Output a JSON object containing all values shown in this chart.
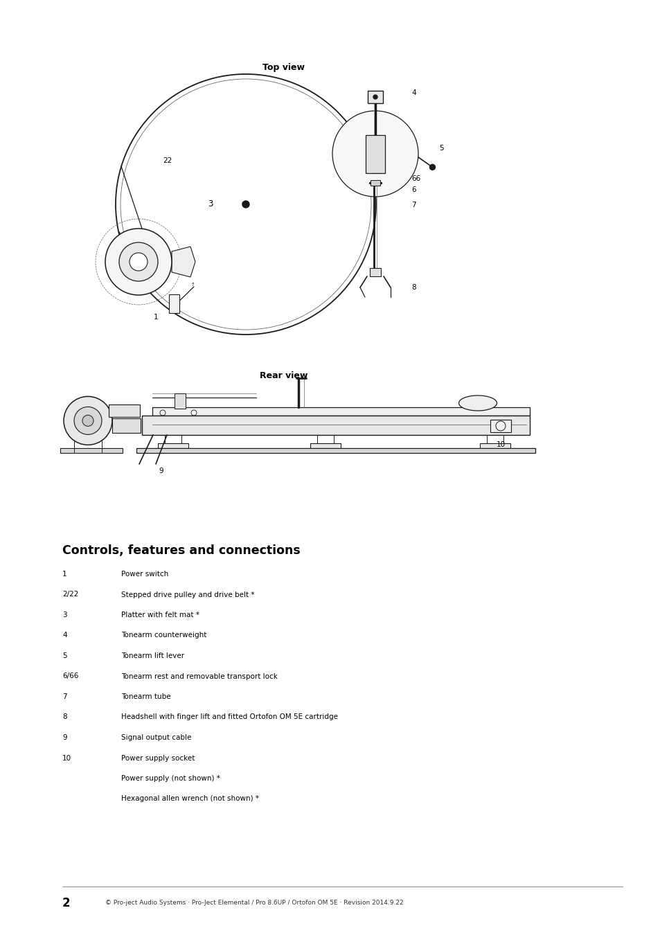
{
  "bg_color": "#ffffff",
  "page_width": 9.54,
  "page_height": 13.5,
  "top_view_label": "Top view",
  "rear_view_label": "Rear view",
  "section_title": "Controls, features and connections",
  "items": [
    {
      "num": "1",
      "desc": "Power switch"
    },
    {
      "num": "2/22",
      "desc": "Stepped drive pulley and drive belt *"
    },
    {
      "num": "3",
      "desc": "Platter with felt mat *"
    },
    {
      "num": "4",
      "desc": "Tonearm counterweight"
    },
    {
      "num": "5",
      "desc": "Tonearm lift lever"
    },
    {
      "num": "6/66",
      "desc": "Tonearm rest and removable transport lock"
    },
    {
      "num": "7",
      "desc": "Tonearm tube"
    },
    {
      "num": "8",
      "desc": "Headshell with finger lift and fitted Ortofon OM 5E cartridge"
    },
    {
      "num": "9",
      "desc": "Signal output cable"
    },
    {
      "num": "10",
      "desc": "Power supply socket"
    },
    {
      "num": "",
      "desc": "Power supply (not shown) *"
    },
    {
      "num": "",
      "desc": "Hexagonal allen wrench (not shown) *"
    }
  ],
  "footer_num": "2",
  "footer_text": "© Pro-ject Audio Systems · Pro-Ject Elemental / Pro 8.6UP / Ortofon OM 5E · Revision 2014.9.22",
  "diagram_color": "#1a1a1a",
  "mid_gray": "#666666",
  "light_gray": "#999999"
}
